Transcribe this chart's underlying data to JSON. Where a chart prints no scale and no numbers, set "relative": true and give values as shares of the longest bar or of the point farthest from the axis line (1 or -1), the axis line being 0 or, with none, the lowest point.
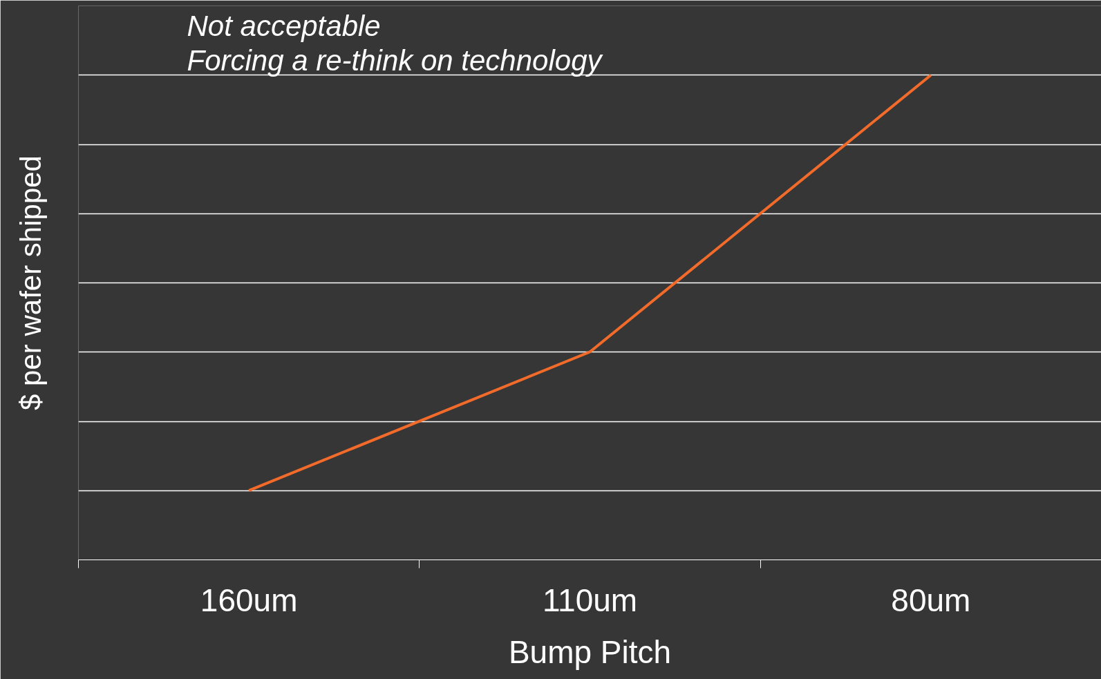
{
  "chart_data": {
    "type": "line",
    "relative": true,
    "xlabel": "Bump Pitch",
    "ylabel": "$ per wafer shipped",
    "categories": [
      "160um",
      "110um",
      "80um"
    ],
    "series": [
      {
        "color": "#f26b2a",
        "values": [
          0.143,
          0.429,
          1
        ]
      }
    ],
    "grid": "y",
    "marker": "none",
    "line_style": "solid",
    "annotations": [
      "Not acceptable",
      "Forcing a re-think on technology"
    ]
  }
}
